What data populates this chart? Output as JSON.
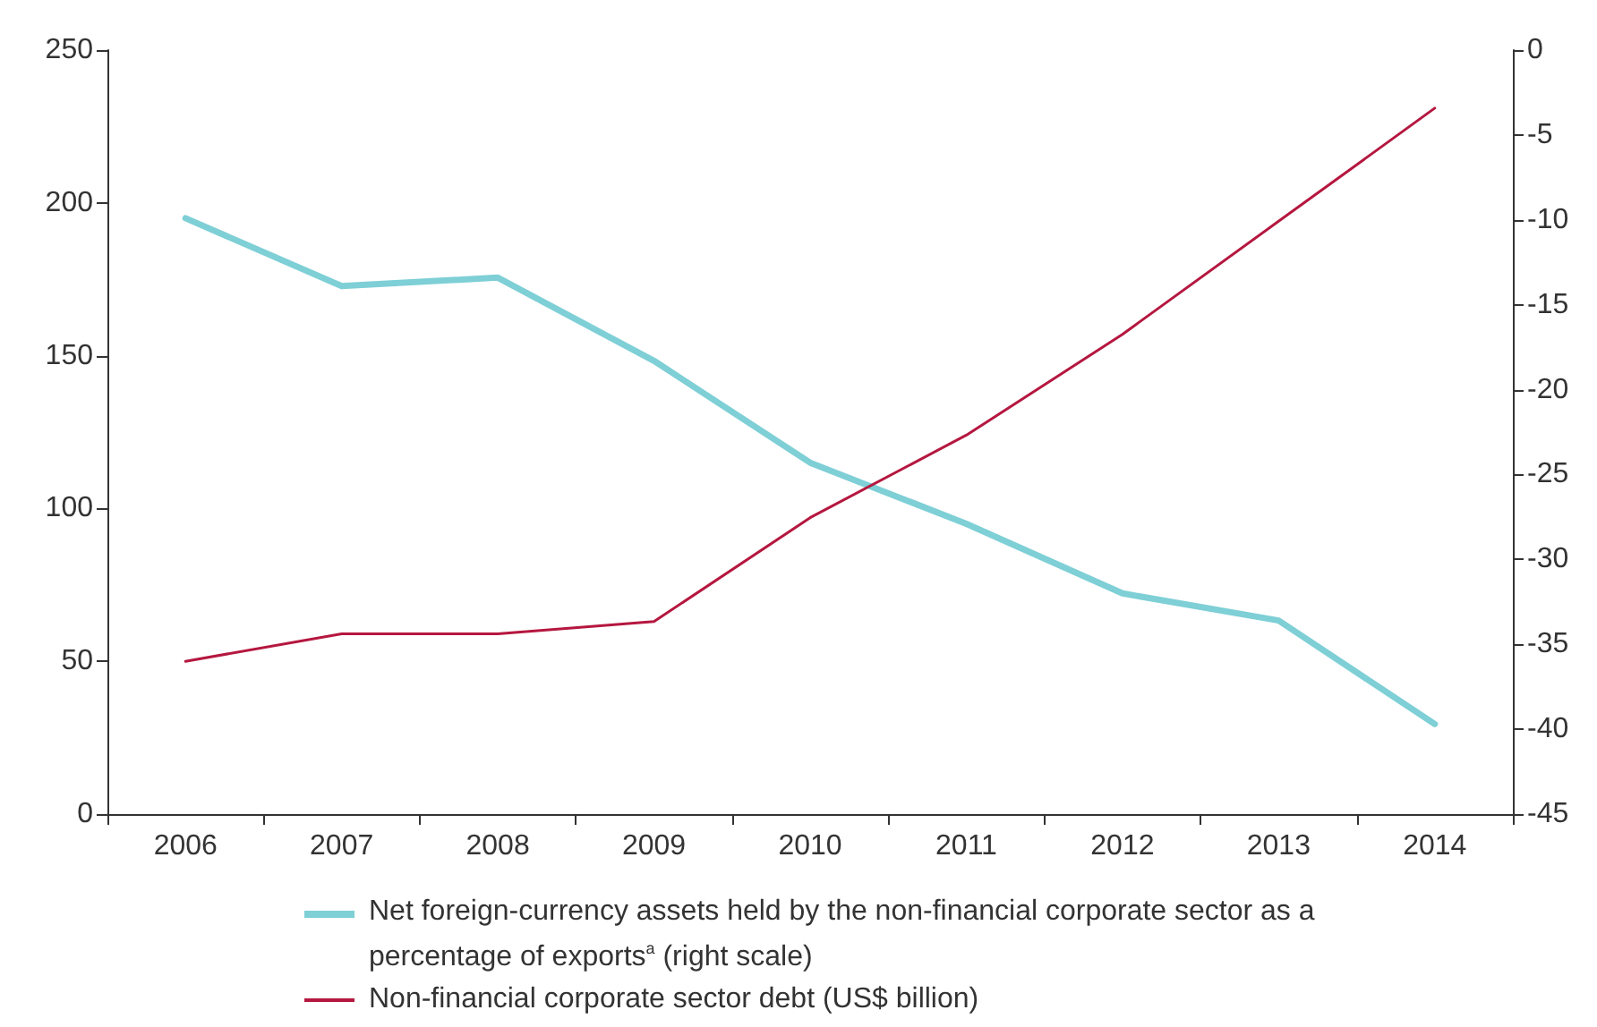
{
  "chart_data": {
    "type": "line",
    "categories": [
      "2006",
      "2007",
      "2008",
      "2009",
      "2010",
      "2011",
      "2012",
      "2013",
      "2014"
    ],
    "series": [
      {
        "name": "Net foreign-currency assets held by the non-financial corporate sector as a percentage of exports$^{a}$ (right scale)",
        "color": "#7ecfd6",
        "axis": "y2",
        "values": [
          -9.9,
          -13.9,
          -13.4,
          -18.3,
          -24.3,
          -27.9,
          -32.0,
          -33.6,
          -39.7
        ]
      },
      {
        "name": "Non-financial corporate sector debt (US$ billion)",
        "color": "#b5173f",
        "values": [
          50,
          59,
          59,
          63,
          97,
          124,
          157,
          194,
          231
        ]
      }
    ],
    "ylim": [
      0,
      250
    ],
    "yticks": [
      0,
      50,
      100,
      150,
      200,
      250
    ],
    "y2lim": [
      -45,
      0
    ],
    "y2ticks": [
      -45,
      -40,
      -35,
      -30,
      -25,
      -20,
      -15,
      -10,
      -5,
      0
    ],
    "grid": false,
    "legend": "bottom",
    "marker": "none",
    "line_style": "solid"
  }
}
